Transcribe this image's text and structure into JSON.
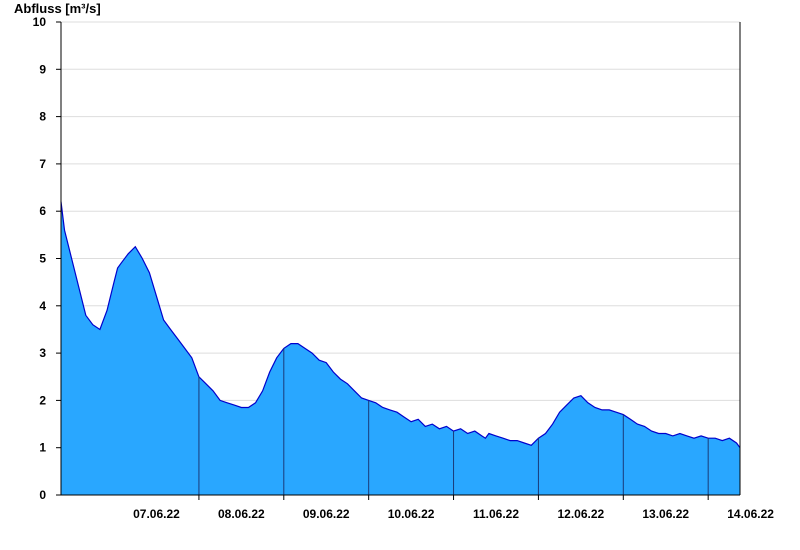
{
  "chart_data": {
    "type": "area",
    "ylabel": "Abfluss [m³/s]",
    "xlabel": "",
    "title": "",
    "ylim": [
      0,
      10
    ],
    "yticks": [
      "0",
      "1",
      "2",
      "3",
      "4",
      "5",
      "6",
      "7",
      "8",
      "9",
      "10"
    ],
    "xlim": [
      "06.06.22 09:00",
      "14.06.22 09:00"
    ],
    "day_markers": [
      "07.06.22",
      "08.06.22",
      "09.06.22",
      "10.06.22",
      "11.06.22",
      "12.06.22",
      "13.06.22",
      "14.06.22"
    ],
    "grid": "horizontal",
    "colors": {
      "fill": "#29a7ff",
      "line": "#0000cc",
      "axis": "#000000",
      "grid": "#dddddd",
      "day_line": "#1a3a78"
    },
    "series": [
      {
        "x": [
          "06.06.22 09:00",
          "06.06.22 10:00",
          "06.06.22 12:00",
          "06.06.22 14:00",
          "06.06.22 16:00",
          "06.06.22 18:00",
          "06.06.22 20:00",
          "06.06.22 22:00",
          "07.06.22 00:00",
          "07.06.22 01:00",
          "07.06.22 02:00",
          "07.06.22 04:00",
          "07.06.22 06:00",
          "07.06.22 08:00",
          "07.06.22 10:00",
          "07.06.22 12:00",
          "07.06.22 14:00",
          "07.06.22 16:00",
          "07.06.22 18:00",
          "07.06.22 20:00",
          "07.06.22 22:00",
          "08.06.22 00:00",
          "08.06.22 02:00",
          "08.06.22 04:00",
          "08.06.22 06:00",
          "08.06.22 08:00",
          "08.06.22 10:00",
          "08.06.22 12:00",
          "08.06.22 14:00",
          "08.06.22 16:00",
          "08.06.22 18:00",
          "08.06.22 20:00",
          "08.06.22 22:00",
          "09.06.22 00:00",
          "09.06.22 02:00",
          "09.06.22 04:00",
          "09.06.22 06:00",
          "09.06.22 08:00",
          "09.06.22 10:00",
          "09.06.22 12:00",
          "09.06.22 14:00",
          "09.06.22 16:00",
          "09.06.22 18:00",
          "09.06.22 20:00",
          "09.06.22 22:00",
          "10.06.22 00:00",
          "10.06.22 02:00",
          "10.06.22 04:00",
          "10.06.22 06:00",
          "10.06.22 08:00",
          "10.06.22 10:00",
          "10.06.22 12:00",
          "10.06.22 14:00",
          "10.06.22 16:00",
          "10.06.22 18:00",
          "10.06.22 20:00",
          "10.06.22 22:00",
          "11.06.22 00:00",
          "11.06.22 02:00",
          "11.06.22 04:00",
          "11.06.22 06:00",
          "11.06.22 08:00",
          "11.06.22 09:00",
          "11.06.22 10:00",
          "11.06.22 12:00",
          "11.06.22 14:00",
          "11.06.22 16:00",
          "11.06.22 18:00",
          "11.06.22 20:00",
          "11.06.22 22:00",
          "12.06.22 00:00",
          "12.06.22 02:00",
          "12.06.22 04:00",
          "12.06.22 06:00",
          "12.06.22 08:00",
          "12.06.22 10:00",
          "12.06.22 12:00",
          "12.06.22 14:00",
          "12.06.22 16:00",
          "12.06.22 18:00",
          "12.06.22 20:00",
          "12.06.22 22:00",
          "13.06.22 00:00",
          "13.06.22 02:00",
          "13.06.22 04:00",
          "13.06.22 06:00",
          "13.06.22 08:00",
          "13.06.22 10:00",
          "13.06.22 12:00",
          "13.06.22 14:00",
          "13.06.22 16:00",
          "13.06.22 18:00",
          "13.06.22 20:00",
          "13.06.22 22:00",
          "14.06.22 00:00",
          "14.06.22 02:00",
          "14.06.22 04:00",
          "14.06.22 06:00",
          "14.06.22 08:00",
          "14.06.22 09:00"
        ],
        "values": [
          6.2,
          5.6,
          5.0,
          4.4,
          3.8,
          3.6,
          3.5,
          3.9,
          4.5,
          4.8,
          4.9,
          5.1,
          5.25,
          5.0,
          4.7,
          4.2,
          3.7,
          3.5,
          3.3,
          3.1,
          2.9,
          2.5,
          2.35,
          2.2,
          2.0,
          1.95,
          1.9,
          1.85,
          1.85,
          1.95,
          2.2,
          2.6,
          2.9,
          3.1,
          3.2,
          3.2,
          3.1,
          3.0,
          2.85,
          2.8,
          2.6,
          2.45,
          2.35,
          2.2,
          2.05,
          2.0,
          1.95,
          1.85,
          1.8,
          1.75,
          1.65,
          1.55,
          1.6,
          1.45,
          1.5,
          1.4,
          1.45,
          1.35,
          1.4,
          1.3,
          1.35,
          1.25,
          1.2,
          1.3,
          1.25,
          1.2,
          1.15,
          1.15,
          1.1,
          1.05,
          1.2,
          1.3,
          1.5,
          1.75,
          1.9,
          2.05,
          2.1,
          1.95,
          1.85,
          1.8,
          1.8,
          1.75,
          1.7,
          1.6,
          1.5,
          1.45,
          1.35,
          1.3,
          1.3,
          1.25,
          1.3,
          1.25,
          1.2,
          1.25,
          1.2,
          1.2,
          1.15,
          1.2,
          1.1,
          1.0
        ]
      }
    ]
  }
}
